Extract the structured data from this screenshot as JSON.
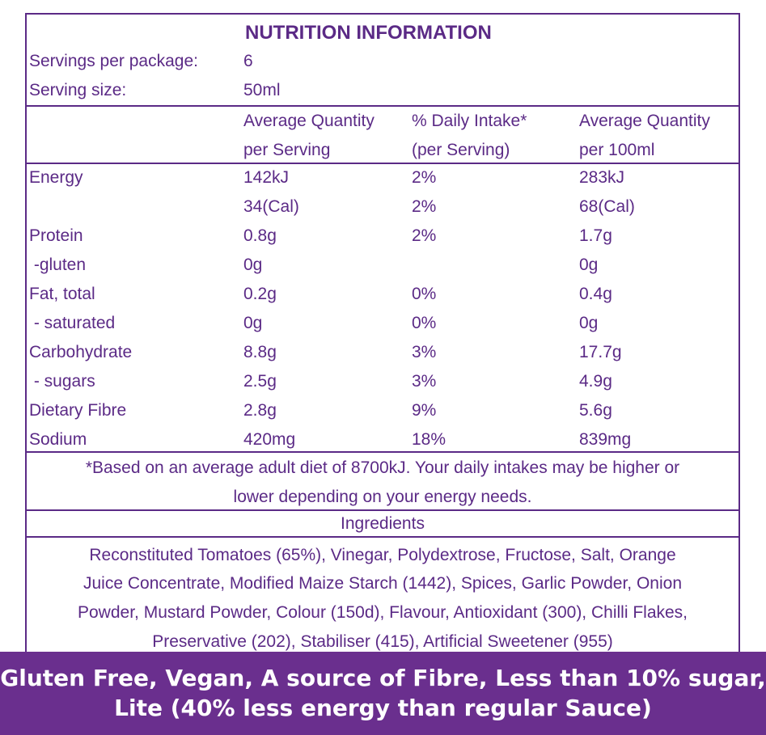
{
  "title": "NUTRITION INFORMATION",
  "servings": {
    "per_package_label": "Servings per package:",
    "per_package_value": "6",
    "size_label": "Serving size:",
    "size_value": "50ml"
  },
  "headers": {
    "col1_line1": "Average Quantity",
    "col1_line2": "per Serving",
    "col2_line1": "% Daily Intake*",
    "col2_line2": "(per Serving)",
    "col3_line1": "Average Quantity",
    "col3_line2": "per 100ml"
  },
  "rows": [
    {
      "name": "Energy",
      "serving": "142kJ",
      "daily": "2%",
      "per100": "283kJ"
    },
    {
      "name": "",
      "serving": "34(Cal)",
      "daily": "2%",
      "per100": "68(Cal)"
    },
    {
      "name": "Protein",
      "serving": "0.8g",
      "daily": "2%",
      "per100": "1.7g"
    },
    {
      "name": " -gluten",
      "serving": "0g",
      "daily": "",
      "per100": "0g"
    },
    {
      "name": "Fat, total",
      "serving": "0.2g",
      "daily": "0%",
      "per100": "0.4g"
    },
    {
      "name": " - saturated",
      "serving": "0g",
      "daily": "0%",
      "per100": "0g"
    },
    {
      "name": "Carbohydrate",
      "serving": "8.8g",
      "daily": "3%",
      "per100": "17.7g"
    },
    {
      "name": " - sugars",
      "serving": "2.5g",
      "daily": "3%",
      "per100": "4.9g"
    },
    {
      "name": "Dietary Fibre",
      "serving": "2.8g",
      "daily": "9%",
      "per100": "5.6g"
    },
    {
      "name": "Sodium",
      "serving": "420mg",
      "daily": "18%",
      "per100": "839mg"
    }
  ],
  "footnote": {
    "line1": "*Based on an average adult diet of 8700kJ. Your daily intakes may be higher or",
    "line2": "lower depending on your energy needs."
  },
  "ingredients": {
    "title": "Ingredients",
    "lines": [
      "Reconstituted Tomatoes (65%), Vinegar, Polydextrose, Fructose, Salt, Orange",
      "Juice Concentrate, Modified Maize Starch (1442), Spices, Garlic Powder, Onion",
      "Powder, Mustard Powder, Colour (150d), Flavour, Antioxidant (300), Chilli Flakes,",
      "Preservative (202), Stabiliser (415), Artificial Sweetener (955)"
    ]
  },
  "banner": {
    "line1": "Gluten Free, Vegan, A source of Fibre, Less than 10% sugar,",
    "line2": "Lite (40% less energy than regular Sauce)"
  },
  "colors": {
    "accent": "#5b2a86",
    "banner_bg": "#6a2f8e"
  }
}
